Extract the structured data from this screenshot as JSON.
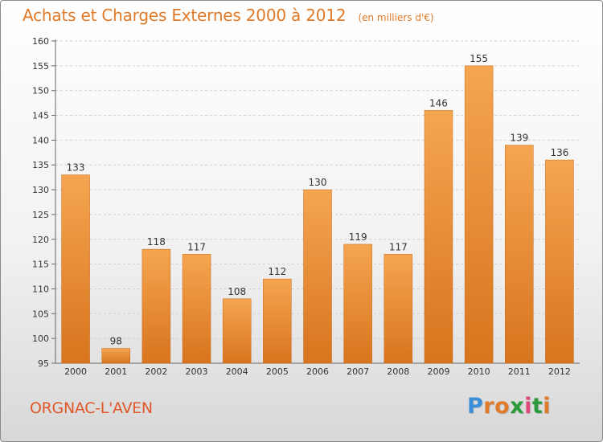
{
  "header": {
    "title": "Achats et Charges Externes 2000 à 2012",
    "unit": "(en milliers d'€)"
  },
  "footer": {
    "commune": "ORGNAC-L'AVEN",
    "logo_letters": [
      "P",
      "r",
      "o",
      "x",
      "i",
      "t",
      "i"
    ],
    "logo_colors": [
      "#3a8fd8",
      "#e07a28",
      "#e07a28",
      "#2a9a3a",
      "#e04a7a",
      "#2a9a3a",
      "#e07a28"
    ]
  },
  "colors": {
    "bar_light": "#f5a550",
    "bar_dark": "#d8741e",
    "grid": "#d0d0d0",
    "axis": "#666666",
    "label": "#333333"
  },
  "chart_data": {
    "type": "bar",
    "title": "Achats et Charges Externes 2000 à 2012",
    "subtitle": "(en milliers d'€)",
    "xlabel": "",
    "ylabel": "",
    "categories": [
      "2000",
      "2001",
      "2002",
      "2003",
      "2004",
      "2005",
      "2006",
      "2007",
      "2008",
      "2009",
      "2010",
      "2011",
      "2012"
    ],
    "values": [
      133,
      98,
      118,
      117,
      108,
      112,
      130,
      119,
      117,
      146,
      155,
      139,
      136
    ],
    "ylim": [
      95,
      160
    ],
    "yticks": [
      95,
      100,
      105,
      110,
      115,
      120,
      125,
      130,
      135,
      140,
      145,
      150,
      155,
      160
    ],
    "grid": true,
    "data_labels": true
  }
}
